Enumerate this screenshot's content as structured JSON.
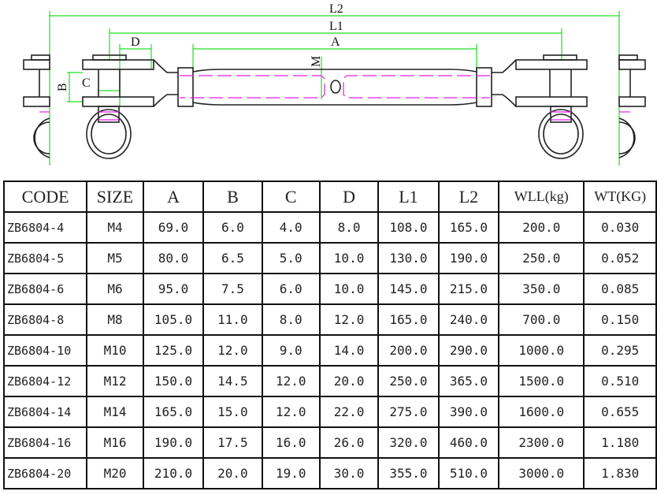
{
  "drawing": {
    "labels": {
      "l2": "L2",
      "l1": "L1",
      "a": "A",
      "d": "D",
      "m": "M",
      "b": "B",
      "c": "C"
    },
    "colors": {
      "dimension": "#22dd22",
      "hidden_line": "#e020e0",
      "outline": "#222222"
    }
  },
  "table": {
    "headers": [
      "CODE",
      "SIZE",
      "A",
      "B",
      "C",
      "D",
      "L1",
      "L2",
      "WLL(kg)",
      "WT(KG)"
    ],
    "rows": [
      [
        "ZB6804-4",
        "M4",
        "69.0",
        "6.0",
        "4.0",
        "8.0",
        "108.0",
        "165.0",
        "200.0",
        "0.030"
      ],
      [
        "ZB6804-5",
        "M5",
        "80.0",
        "6.5",
        "5.0",
        "10.0",
        "130.0",
        "190.0",
        "250.0",
        "0.052"
      ],
      [
        "ZB6804-6",
        "M6",
        "95.0",
        "7.5",
        "6.0",
        "10.0",
        "145.0",
        "215.0",
        "350.0",
        "0.085"
      ],
      [
        "ZB6804-8",
        "M8",
        "105.0",
        "11.0",
        "8.0",
        "12.0",
        "165.0",
        "240.0",
        "700.0",
        "0.150"
      ],
      [
        "ZB6804-10",
        "M10",
        "125.0",
        "12.0",
        "9.0",
        "14.0",
        "200.0",
        "290.0",
        "1000.0",
        "0.295"
      ],
      [
        "ZB6804-12",
        "M12",
        "150.0",
        "14.5",
        "12.0",
        "20.0",
        "250.0",
        "365.0",
        "1500.0",
        "0.510"
      ],
      [
        "ZB6804-14",
        "M14",
        "165.0",
        "15.0",
        "12.0",
        "22.0",
        "275.0",
        "390.0",
        "1600.0",
        "0.655"
      ],
      [
        "ZB6804-16",
        "M16",
        "190.0",
        "17.5",
        "16.0",
        "26.0",
        "320.0",
        "460.0",
        "2300.0",
        "1.180"
      ],
      [
        "ZB6804-20",
        "M20",
        "210.0",
        "20.0",
        "19.0",
        "30.0",
        "355.0",
        "510.0",
        "3000.0",
        "1.830"
      ]
    ]
  }
}
